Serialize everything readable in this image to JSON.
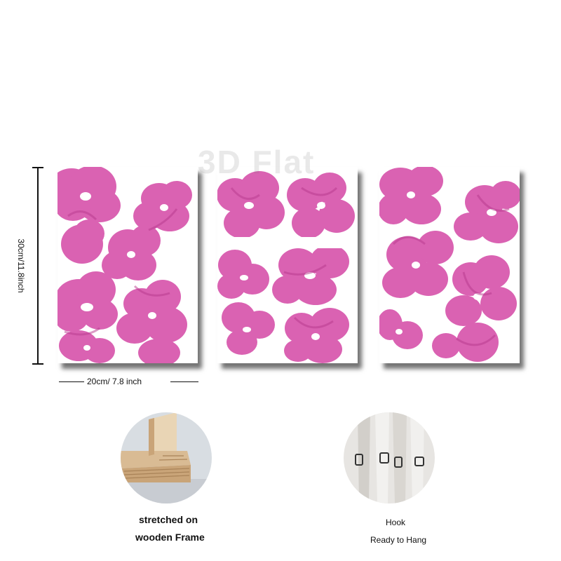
{
  "watermark": "3D Flat",
  "dimensions": {
    "height_label": "30cm/11.8inch",
    "width_label": "20cm/ 7.8 inch"
  },
  "panels": [
    {
      "name": "left",
      "image": "pink-watercolor-flowers"
    },
    {
      "name": "center",
      "image": "pink-watercolor-flowers"
    },
    {
      "name": "right",
      "image": "pink-watercolor-flowers"
    }
  ],
  "features": {
    "frame": {
      "image": "wooden-frame-corner",
      "line1": "stretched on",
      "line2": "wooden Frame"
    },
    "hook": {
      "image": "hanging-hooks",
      "line1": "Hook",
      "line2": "Ready to Hang"
    }
  },
  "colors": {
    "flower": "#d755ac",
    "flower_dark": "#b83a8d",
    "wood": "#d9bb94",
    "canvas_white": "#ffffff"
  }
}
